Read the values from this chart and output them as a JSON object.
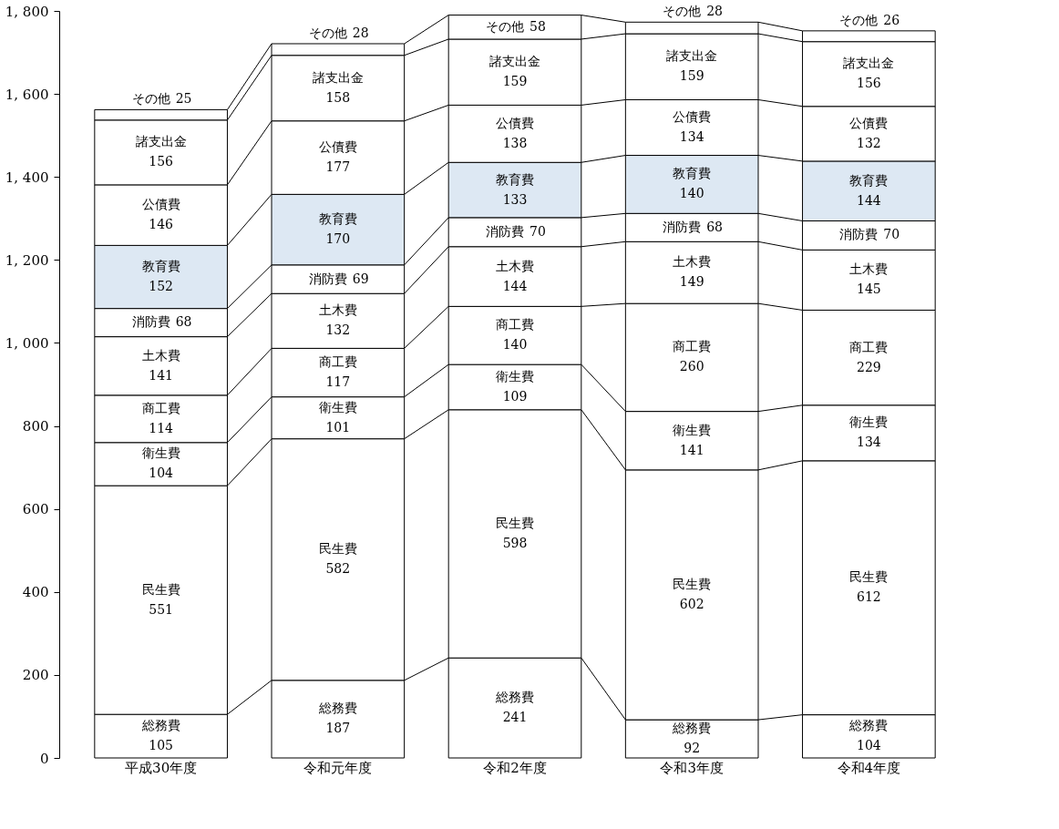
{
  "chart_data": {
    "type": "bar",
    "stacked": true,
    "categories": [
      "平成30年度",
      "令和元年度",
      "令和2年度",
      "令和3年度",
      "令和4年度"
    ],
    "series": [
      {
        "name": "総務費",
        "color": "#ffffff",
        "values": [
          105,
          187,
          241,
          92,
          104
        ]
      },
      {
        "name": "民生費",
        "color": "#ffffff",
        "values": [
          551,
          582,
          598,
          602,
          612
        ]
      },
      {
        "name": "衛生費",
        "color": "#ffffff",
        "values": [
          104,
          101,
          109,
          141,
          134
        ]
      },
      {
        "name": "商工費",
        "color": "#ffffff",
        "values": [
          114,
          117,
          140,
          260,
          229
        ]
      },
      {
        "name": "土木費",
        "color": "#ffffff",
        "values": [
          141,
          132,
          144,
          149,
          145
        ]
      },
      {
        "name": "消防費",
        "color": "#ffffff",
        "values": [
          68,
          69,
          70,
          68,
          70
        ]
      },
      {
        "name": "教育費",
        "color": "#dde8f3",
        "values": [
          152,
          170,
          133,
          140,
          144
        ]
      },
      {
        "name": "公債費",
        "color": "#ffffff",
        "values": [
          146,
          177,
          138,
          134,
          132
        ]
      },
      {
        "name": "諸支出金",
        "color": "#ffffff",
        "values": [
          156,
          158,
          159,
          159,
          156
        ]
      },
      {
        "name": "その他",
        "color": "#ffffff",
        "values": [
          25,
          28,
          58,
          28,
          26
        ]
      }
    ],
    "ylim": [
      0,
      1800
    ],
    "yticks": [
      0,
      200,
      400,
      600,
      800,
      {
        "value": 1000,
        "label": "1, 000"
      },
      {
        "value": 1200,
        "label": "1, 200"
      },
      {
        "value": 1400,
        "label": "1, 400"
      },
      {
        "value": 1600,
        "label": "1, 600"
      },
      {
        "value": 1800,
        "label": "1, 800"
      }
    ],
    "data_labels": true,
    "legend": false,
    "grid": false
  }
}
